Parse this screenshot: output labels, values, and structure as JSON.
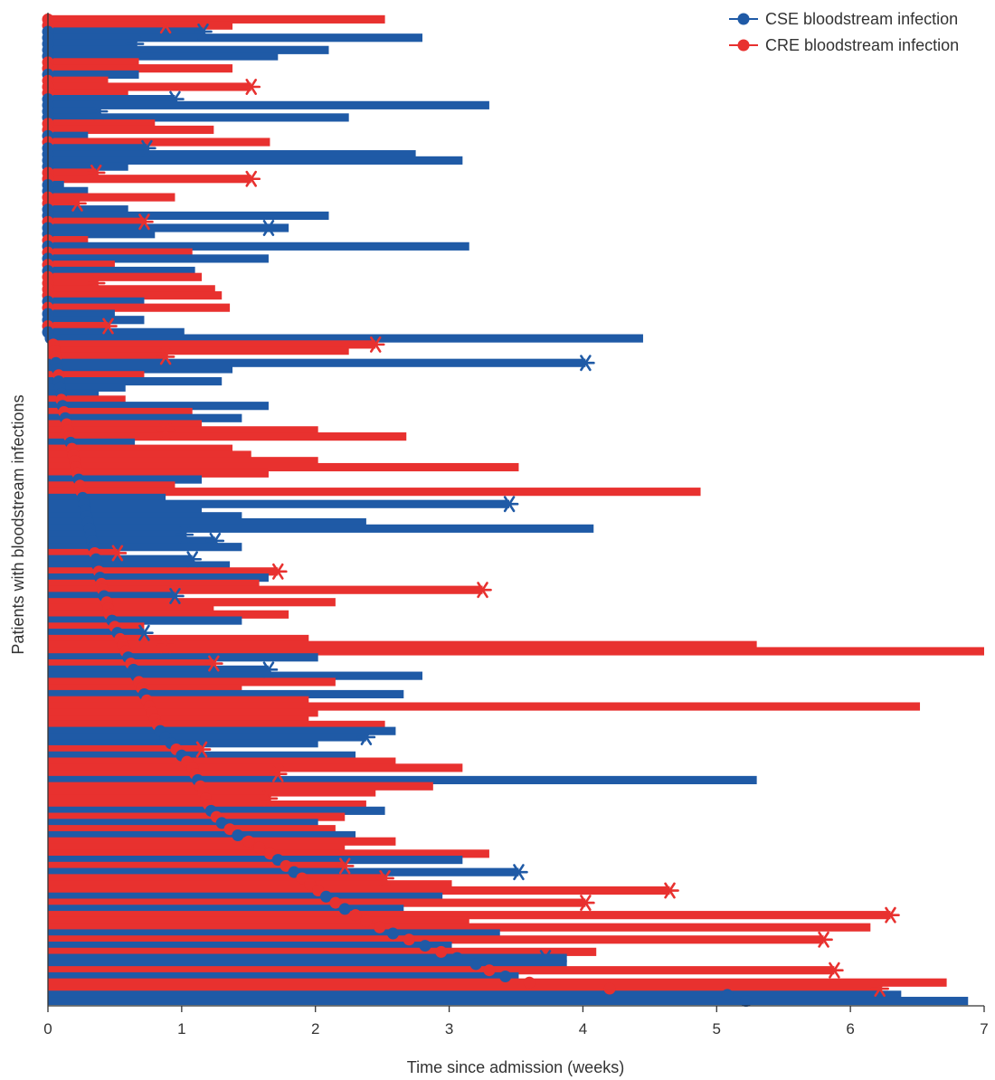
{
  "chart_data": {
    "type": "swimmer",
    "xlabel": "Time since admission (weeks)",
    "ylabel": "Patients with bloodstream infections",
    "xlim": [
      0,
      7
    ],
    "xticks": [
      "0",
      "1",
      "2",
      "3",
      "4",
      "5",
      "6",
      "7"
    ],
    "legend": {
      "placement": "top-right",
      "items": [
        {
          "label": "CSE bloodstream infection",
          "color": "#1f5aa6"
        },
        {
          "label": "CRE bloodstream infection",
          "color": "#e8312f"
        }
      ]
    },
    "marker_meaning": {
      "line": "time in hospital",
      "circle": "bloodstream infection onset",
      "asterisk": "death"
    },
    "patients": [
      {
        "group": "CRE",
        "end": 2.52,
        "onset": 0.0
      },
      {
        "group": "CRE",
        "end": 1.38,
        "onset": 0.0,
        "death": 0.88
      },
      {
        "group": "CSE",
        "end": 1.16,
        "onset": 0.0,
        "death": 1.16
      },
      {
        "group": "CSE",
        "end": 2.8,
        "onset": 0.0
      },
      {
        "group": "CSE",
        "end": 0.65,
        "onset": 0.0,
        "death": 0.65
      },
      {
        "group": "CSE",
        "end": 2.1,
        "onset": 0.0
      },
      {
        "group": "CSE",
        "end": 1.72,
        "onset": 0.0
      },
      {
        "group": "CRE",
        "end": 0.68,
        "onset": 0.0
      },
      {
        "group": "CRE",
        "end": 1.38,
        "onset": 0.0
      },
      {
        "group": "CSE",
        "end": 0.68,
        "onset": 0.0
      },
      {
        "group": "CRE",
        "end": 0.45,
        "onset": 0.0
      },
      {
        "group": "CRE",
        "end": 1.52,
        "onset": 0.0,
        "death": 1.52
      },
      {
        "group": "CRE",
        "end": 0.6,
        "onset": 0.0
      },
      {
        "group": "CSE",
        "end": 0.95,
        "onset": 0.0,
        "death": 0.95
      },
      {
        "group": "CSE",
        "end": 3.3,
        "onset": 0.0
      },
      {
        "group": "CSE",
        "end": 0.38,
        "onset": 0.0,
        "death": 0.38
      },
      {
        "group": "CSE",
        "end": 2.25,
        "onset": 0.0
      },
      {
        "group": "CRE",
        "end": 0.8,
        "onset": 0.0
      },
      {
        "group": "CRE",
        "end": 1.24,
        "onset": 0.0
      },
      {
        "group": "CSE",
        "end": 0.3,
        "onset": 0.0
      },
      {
        "group": "CRE",
        "end": 1.66,
        "onset": 0.0
      },
      {
        "group": "CSE",
        "end": 0.74,
        "onset": 0.0,
        "death": 0.74
      },
      {
        "group": "CSE",
        "end": 2.75,
        "onset": 0.0
      },
      {
        "group": "CSE",
        "end": 3.1,
        "onset": 0.0
      },
      {
        "group": "CSE",
        "end": 0.6,
        "onset": 0.0
      },
      {
        "group": "CRE",
        "end": 0.36,
        "onset": 0.0,
        "death": 0.36
      },
      {
        "group": "CRE",
        "end": 1.52,
        "onset": 0.0,
        "death": 1.52
      },
      {
        "group": "CSE",
        "end": 0.12,
        "onset": 0.0
      },
      {
        "group": "CSE",
        "end": 0.3,
        "onset": 0.0
      },
      {
        "group": "CRE",
        "end": 0.95,
        "onset": 0.0
      },
      {
        "group": "CRE",
        "end": 0.22,
        "onset": 0.0,
        "death": 0.22
      },
      {
        "group": "CSE",
        "end": 0.6,
        "onset": 0.0
      },
      {
        "group": "CSE",
        "end": 2.1,
        "onset": 0.0
      },
      {
        "group": "CRE",
        "end": 0.72,
        "onset": 0.0,
        "death": 0.72
      },
      {
        "group": "CSE",
        "end": 1.8,
        "onset": 0.0,
        "death": 1.65
      },
      {
        "group": "CSE",
        "end": 0.8,
        "onset": 0.0
      },
      {
        "group": "CRE",
        "end": 0.3,
        "onset": 0.0
      },
      {
        "group": "CSE",
        "end": 3.15,
        "onset": 0.0
      },
      {
        "group": "CRE",
        "end": 1.08,
        "onset": 0.0
      },
      {
        "group": "CSE",
        "end": 1.65,
        "onset": 0.0
      },
      {
        "group": "CRE",
        "end": 0.5,
        "onset": 0.0
      },
      {
        "group": "CSE",
        "end": 1.1,
        "onset": 0.0
      },
      {
        "group": "CRE",
        "end": 1.15,
        "onset": 0.0
      },
      {
        "group": "CRE",
        "end": 0.36,
        "onset": 0.0,
        "death": 0.36
      },
      {
        "group": "CRE",
        "end": 1.25,
        "onset": 0.0
      },
      {
        "group": "CRE",
        "end": 1.3,
        "onset": 0.0
      },
      {
        "group": "CSE",
        "end": 0.72,
        "onset": 0.0
      },
      {
        "group": "CRE",
        "end": 1.36,
        "onset": 0.0
      },
      {
        "group": "CSE",
        "end": 0.5,
        "onset": 0.0
      },
      {
        "group": "CSE",
        "end": 0.72,
        "onset": 0.0
      },
      {
        "group": "CRE",
        "end": 0.45,
        "onset": 0.0,
        "death": 0.45
      },
      {
        "group": "CSE",
        "end": 1.02,
        "onset": 0.0
      },
      {
        "group": "CSE",
        "end": 4.45,
        "onset": 0.02
      },
      {
        "group": "CRE",
        "end": 2.45,
        "onset": 0.04,
        "death": 2.45
      },
      {
        "group": "CRE",
        "end": 2.25,
        "onset": 0.05
      },
      {
        "group": "CRE",
        "end": 0.88,
        "onset": 0.06,
        "death": 0.88
      },
      {
        "group": "CSE",
        "end": 4.02,
        "onset": 0.06,
        "death": 4.02
      },
      {
        "group": "CSE",
        "end": 1.38,
        "onset": 0.07
      },
      {
        "group": "CRE",
        "end": 0.72,
        "onset": 0.08
      },
      {
        "group": "CSE",
        "end": 1.3,
        "onset": 0.08
      },
      {
        "group": "CSE",
        "end": 0.58,
        "onset": 0.09
      },
      {
        "group": "CSE",
        "end": 0.38,
        "onset": 0.1
      },
      {
        "group": "CRE",
        "end": 0.58,
        "onset": 0.1
      },
      {
        "group": "CSE",
        "end": 1.65,
        "onset": 0.11
      },
      {
        "group": "CRE",
        "end": 1.08,
        "onset": 0.12
      },
      {
        "group": "CSE",
        "end": 1.45,
        "onset": 0.13
      },
      {
        "group": "CRE",
        "end": 1.15,
        "onset": 0.14
      },
      {
        "group": "CRE",
        "end": 2.02,
        "onset": 0.15,
        "death": 0.88
      },
      {
        "group": "CRE",
        "end": 2.68,
        "onset": 0.16
      },
      {
        "group": "CSE",
        "end": 0.65,
        "onset": 0.17
      },
      {
        "group": "CRE",
        "end": 1.38,
        "onset": 0.18
      },
      {
        "group": "CRE",
        "end": 1.52,
        "onset": 0.19
      },
      {
        "group": "CRE",
        "end": 2.02,
        "onset": 0.2
      },
      {
        "group": "CRE",
        "end": 3.52,
        "onset": 0.21
      },
      {
        "group": "CRE",
        "end": 1.65,
        "onset": 0.22
      },
      {
        "group": "CSE",
        "end": 1.15,
        "onset": 0.23
      },
      {
        "group": "CRE",
        "end": 0.95,
        "onset": 0.24
      },
      {
        "group": "CRE",
        "end": 4.88,
        "onset": 0.25
      },
      {
        "group": "CSE",
        "end": 0.88,
        "onset": 0.26
      },
      {
        "group": "CSE",
        "end": 3.45,
        "onset": 0.27,
        "death": 3.45
      },
      {
        "group": "CSE",
        "end": 1.15,
        "onset": 0.28
      },
      {
        "group": "CSE",
        "end": 1.45,
        "onset": 0.29
      },
      {
        "group": "CSE",
        "end": 2.38,
        "onset": 0.3
      },
      {
        "group": "CSE",
        "end": 4.08,
        "onset": 0.31
      },
      {
        "group": "CSE",
        "end": 1.02,
        "onset": 0.32,
        "death": 1.02
      },
      {
        "group": "CSE",
        "end": 1.25,
        "onset": 0.33,
        "death": 1.25
      },
      {
        "group": "CSE",
        "end": 1.45,
        "onset": 0.34
      },
      {
        "group": "CRE",
        "end": 0.52,
        "onset": 0.35,
        "death": 0.52
      },
      {
        "group": "CSE",
        "end": 1.08,
        "onset": 0.36,
        "death": 1.08
      },
      {
        "group": "CSE",
        "end": 1.36,
        "onset": 0.37
      },
      {
        "group": "CRE",
        "end": 1.72,
        "onset": 0.38,
        "death": 1.72
      },
      {
        "group": "CSE",
        "end": 1.65,
        "onset": 0.39
      },
      {
        "group": "CRE",
        "end": 1.58,
        "onset": 0.4
      },
      {
        "group": "CRE",
        "end": 3.25,
        "onset": 0.41,
        "death": 3.25
      },
      {
        "group": "CSE",
        "end": 0.95,
        "onset": 0.42,
        "death": 0.95
      },
      {
        "group": "CRE",
        "end": 2.15,
        "onset": 0.44
      },
      {
        "group": "CRE",
        "end": 1.24,
        "onset": 0.45
      },
      {
        "group": "CRE",
        "end": 1.8,
        "onset": 0.46
      },
      {
        "group": "CSE",
        "end": 1.45,
        "onset": 0.48
      },
      {
        "group": "CRE",
        "end": 0.72,
        "onset": 0.5
      },
      {
        "group": "CSE",
        "end": 0.72,
        "onset": 0.52,
        "death": 0.72
      },
      {
        "group": "CRE",
        "end": 1.95,
        "onset": 0.54
      },
      {
        "group": "CRE",
        "end": 5.3,
        "onset": 0.56,
        "death": 0.88
      },
      {
        "group": "CRE",
        "end": 7.0,
        "onset": 0.58
      },
      {
        "group": "CSE",
        "end": 2.02,
        "onset": 0.6
      },
      {
        "group": "CRE",
        "end": 1.24,
        "onset": 0.62,
        "death": 1.24
      },
      {
        "group": "CSE",
        "end": 1.65,
        "onset": 0.64,
        "death": 1.65
      },
      {
        "group": "CSE",
        "end": 2.8,
        "onset": 0.66
      },
      {
        "group": "CRE",
        "end": 2.15,
        "onset": 0.68
      },
      {
        "group": "CRE",
        "end": 1.45,
        "onset": 0.7
      },
      {
        "group": "CSE",
        "end": 2.66,
        "onset": 0.72
      },
      {
        "group": "CRE",
        "end": 1.95,
        "onset": 0.74
      },
      {
        "group": "CRE",
        "end": 6.52,
        "onset": 0.76
      },
      {
        "group": "CRE",
        "end": 2.02,
        "onset": 0.78
      },
      {
        "group": "CRE",
        "end": 1.95,
        "onset": 0.8
      },
      {
        "group": "CRE",
        "end": 2.52,
        "onset": 0.82
      },
      {
        "group": "CSE",
        "end": 2.6,
        "onset": 0.84
      },
      {
        "group": "CSE",
        "end": 2.38,
        "onset": 0.88,
        "death": 2.38
      },
      {
        "group": "CSE",
        "end": 2.02,
        "onset": 0.92
      },
      {
        "group": "CRE",
        "end": 1.15,
        "onset": 0.96,
        "death": 1.15
      },
      {
        "group": "CSE",
        "end": 2.3,
        "onset": 1.0
      },
      {
        "group": "CRE",
        "end": 2.6,
        "onset": 1.04
      },
      {
        "group": "CRE",
        "end": 3.1,
        "onset": 1.08
      },
      {
        "group": "CRE",
        "end": 1.72,
        "onset": 1.1,
        "death": 1.72
      },
      {
        "group": "CSE",
        "end": 5.3,
        "onset": 1.12
      },
      {
        "group": "CRE",
        "end": 2.88,
        "onset": 1.14
      },
      {
        "group": "CRE",
        "end": 2.45,
        "onset": 1.16
      },
      {
        "group": "CRE",
        "end": 1.65,
        "onset": 1.18,
        "death": 1.65
      },
      {
        "group": "CRE",
        "end": 2.38,
        "onset": 1.2
      },
      {
        "group": "CSE",
        "end": 2.52,
        "onset": 1.22
      },
      {
        "group": "CRE",
        "end": 2.22,
        "onset": 1.26
      },
      {
        "group": "CSE",
        "end": 2.02,
        "onset": 1.3
      },
      {
        "group": "CRE",
        "end": 2.15,
        "onset": 1.36
      },
      {
        "group": "CSE",
        "end": 2.3,
        "onset": 1.42
      },
      {
        "group": "CRE",
        "end": 2.6,
        "onset": 1.5
      },
      {
        "group": "CRE",
        "end": 2.22,
        "onset": 1.58
      },
      {
        "group": "CRE",
        "end": 3.3,
        "onset": 1.66
      },
      {
        "group": "CSE",
        "end": 3.1,
        "onset": 1.72
      },
      {
        "group": "CRE",
        "end": 2.22,
        "onset": 1.78,
        "death": 2.22
      },
      {
        "group": "CSE",
        "end": 3.52,
        "onset": 1.84,
        "death": 3.52
      },
      {
        "group": "CRE",
        "end": 2.52,
        "onset": 1.9,
        "death": 2.52
      },
      {
        "group": "CRE",
        "end": 3.02,
        "onset": 1.96
      },
      {
        "group": "CRE",
        "end": 4.65,
        "onset": 2.02,
        "death": 4.65
      },
      {
        "group": "CSE",
        "end": 2.95,
        "onset": 2.08
      },
      {
        "group": "CRE",
        "end": 4.02,
        "onset": 2.15,
        "death": 4.02
      },
      {
        "group": "CSE",
        "end": 2.66,
        "onset": 2.22
      },
      {
        "group": "CRE",
        "end": 6.3,
        "onset": 2.3,
        "death": 6.3
      },
      {
        "group": "CRE",
        "end": 3.15,
        "onset": 2.38
      },
      {
        "group": "CRE",
        "end": 6.15,
        "onset": 2.48
      },
      {
        "group": "CSE",
        "end": 3.38,
        "onset": 2.58
      },
      {
        "group": "CRE",
        "end": 5.8,
        "onset": 2.7,
        "death": 5.8
      },
      {
        "group": "CSE",
        "end": 3.02,
        "onset": 2.82
      },
      {
        "group": "CRE",
        "end": 4.1,
        "onset": 2.94
      },
      {
        "group": "CSE",
        "end": 3.88,
        "onset": 3.06,
        "death": 3.72
      },
      {
        "group": "CSE",
        "end": 3.88,
        "onset": 3.2
      },
      {
        "group": "CRE",
        "end": 5.88,
        "onset": 3.3,
        "death": 5.88
      },
      {
        "group": "CSE",
        "end": 3.52,
        "onset": 3.42
      },
      {
        "group": "CRE",
        "end": 6.72,
        "onset": 3.6
      },
      {
        "group": "CRE",
        "end": 6.22,
        "onset": 4.2,
        "death": 6.22
      },
      {
        "group": "CSE",
        "end": 6.38,
        "onset": 5.08
      },
      {
        "group": "CSE",
        "end": 6.88,
        "onset": 5.22
      }
    ]
  }
}
